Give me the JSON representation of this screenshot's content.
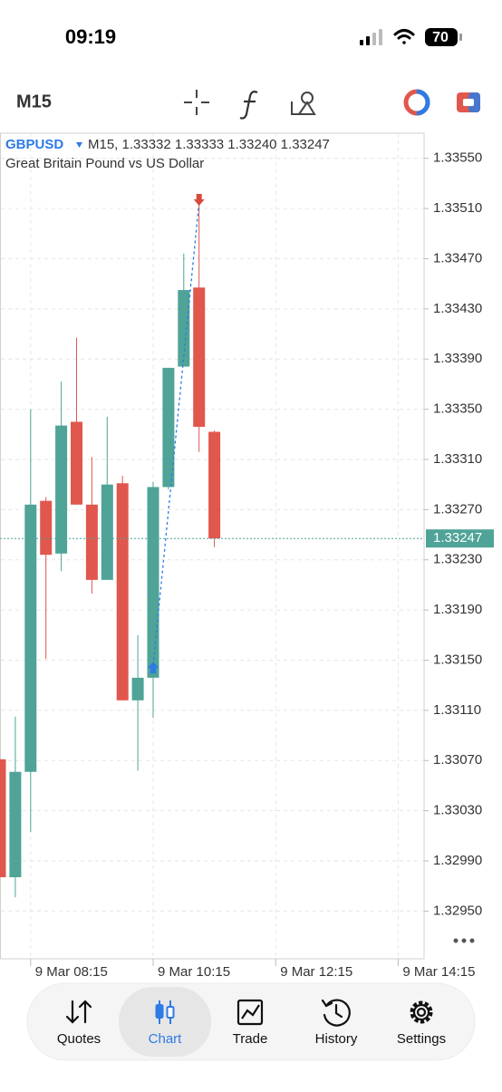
{
  "status_bar": {
    "time": "09:19",
    "battery": "70"
  },
  "toolbar": {
    "timeframe": "M15"
  },
  "chart_data": {
    "type": "candlestick",
    "symbol": "GBPUSD",
    "subtitle": "M15, 1.33332 1.33333 1.33240 1.33247",
    "description": "Great Britain Pound vs US Dollar",
    "categories": [
      null,
      null,
      "9 Mar 08:15",
      null,
      null,
      null,
      null,
      null,
      null,
      null,
      "9 Mar 10:15",
      null,
      null,
      null,
      null,
      null,
      null,
      null,
      "9 Mar 12:15",
      null,
      null,
      null,
      null,
      null,
      null,
      null,
      "9 Mar 14:15",
      null
    ],
    "open": [
      1.33071,
      1.32977,
      1.33061,
      1.33277,
      1.33235,
      1.3334,
      1.33274,
      1.33214,
      1.33291,
      1.33118,
      1.33136,
      1.33288,
      1.33384,
      1.33447,
      1.33332,
      null,
      null,
      null,
      null,
      null,
      null,
      null,
      null,
      null,
      null,
      null,
      null,
      null
    ],
    "high": [
      1.33071,
      1.33105,
      1.3335,
      1.3328,
      1.33372,
      1.33407,
      1.33312,
      1.33344,
      1.33297,
      1.3317,
      1.33292,
      1.33383,
      1.33474,
      1.33513,
      1.33333,
      null,
      null,
      null,
      null,
      null,
      null,
      null,
      null,
      null,
      null,
      null,
      null,
      null
    ],
    "low": [
      1.32977,
      1.32961,
      1.33013,
      1.33151,
      1.33221,
      1.33274,
      1.33203,
      1.33214,
      1.33118,
      1.33062,
      1.33104,
      1.33286,
      1.33384,
      1.33316,
      1.3324,
      null,
      null,
      null,
      null,
      null,
      null,
      null,
      null,
      null,
      null,
      null,
      null,
      null
    ],
    "close": [
      1.32977,
      1.33061,
      1.33274,
      1.33234,
      1.33337,
      1.33274,
      1.33214,
      1.3329,
      1.33118,
      1.33136,
      1.33288,
      1.33383,
      1.33445,
      1.33336,
      1.33247,
      null,
      null,
      null,
      null,
      null,
      null,
      null,
      null,
      null,
      null,
      null,
      null,
      null
    ],
    "up_color": "#4fa397",
    "down_color": "#e0574d",
    "last_price": 1.33247,
    "trade": {
      "buy": {
        "slot": 10,
        "price": 1.33143
      },
      "sell": {
        "slot": 13,
        "price": 1.33518
      }
    },
    "ylim": [
      1.32912,
      1.3357
    ],
    "yticks": [
      {
        "value": 1.3355,
        "label": "1.33550"
      },
      {
        "value": 1.3351,
        "label": "1.33510"
      },
      {
        "value": 1.3347,
        "label": "1.33470"
      },
      {
        "value": 1.3343,
        "label": "1.33430"
      },
      {
        "value": 1.3339,
        "label": "1.33390"
      },
      {
        "value": 1.3335,
        "label": "1.33350"
      },
      {
        "value": 1.3331,
        "label": "1.33310"
      },
      {
        "value": 1.3327,
        "label": "1.33270"
      },
      {
        "value": 1.3323,
        "label": "1.33230"
      },
      {
        "value": 1.3319,
        "label": "1.33190"
      },
      {
        "value": 1.3315,
        "label": "1.33150"
      },
      {
        "value": 1.3311,
        "label": "1.33110"
      },
      {
        "value": 1.3307,
        "label": "1.33070"
      },
      {
        "value": 1.3303,
        "label": "1.33030"
      },
      {
        "value": 1.3299,
        "label": "1.32990"
      },
      {
        "value": 1.3295,
        "label": "1.32950"
      }
    ],
    "grid": true
  },
  "tab_bar": {
    "tabs": [
      "Quotes",
      "Chart",
      "Trade",
      "History",
      "Settings"
    ],
    "active": "Chart"
  }
}
